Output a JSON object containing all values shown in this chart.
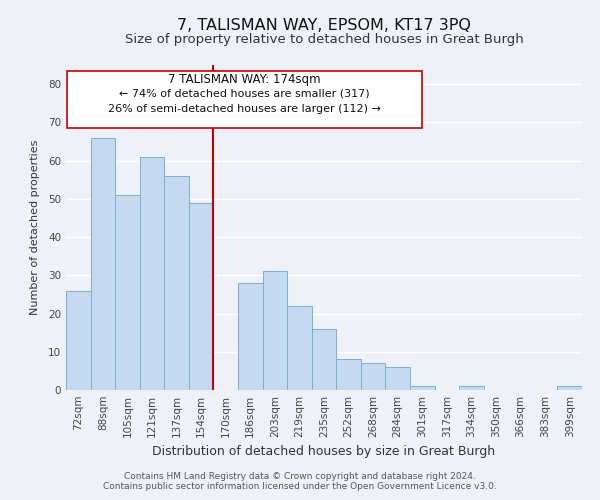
{
  "title": "7, TALISMAN WAY, EPSOM, KT17 3PQ",
  "subtitle": "Size of property relative to detached houses in Great Burgh",
  "xlabel": "Distribution of detached houses by size in Great Burgh",
  "ylabel": "Number of detached properties",
  "categories": [
    "72sqm",
    "88sqm",
    "105sqm",
    "121sqm",
    "137sqm",
    "154sqm",
    "170sqm",
    "186sqm",
    "203sqm",
    "219sqm",
    "235sqm",
    "252sqm",
    "268sqm",
    "284sqm",
    "301sqm",
    "317sqm",
    "334sqm",
    "350sqm",
    "366sqm",
    "383sqm",
    "399sqm"
  ],
  "values": [
    26,
    66,
    51,
    61,
    56,
    49,
    0,
    28,
    31,
    22,
    16,
    8,
    7,
    6,
    1,
    0,
    1,
    0,
    0,
    0,
    1
  ],
  "bar_color": "#c5d9f0",
  "bar_edge_color": "#7bafd4",
  "vline_pos": 5.5,
  "annotation_title": "7 TALISMAN WAY: 174sqm",
  "annotation_line1": "← 74% of detached houses are smaller (317)",
  "annotation_line2": "26% of semi-detached houses are larger (112) →",
  "vline_color": "#cc0000",
  "box_edge_color": "#cc0000",
  "ylim": [
    0,
    85
  ],
  "yticks": [
    0,
    10,
    20,
    30,
    40,
    50,
    60,
    70,
    80
  ],
  "footnote1": "Contains HM Land Registry data © Crown copyright and database right 2024.",
  "footnote2": "Contains public sector information licensed under the Open Government Licence v3.0.",
  "background_color": "#eef2f8",
  "grid_color": "#ffffff",
  "title_fontsize": 11.5,
  "subtitle_fontsize": 9.5,
  "xlabel_fontsize": 9,
  "ylabel_fontsize": 8,
  "tick_fontsize": 7.5,
  "annotation_title_fontsize": 8.5,
  "annotation_fontsize": 8,
  "footnote_fontsize": 6.5
}
